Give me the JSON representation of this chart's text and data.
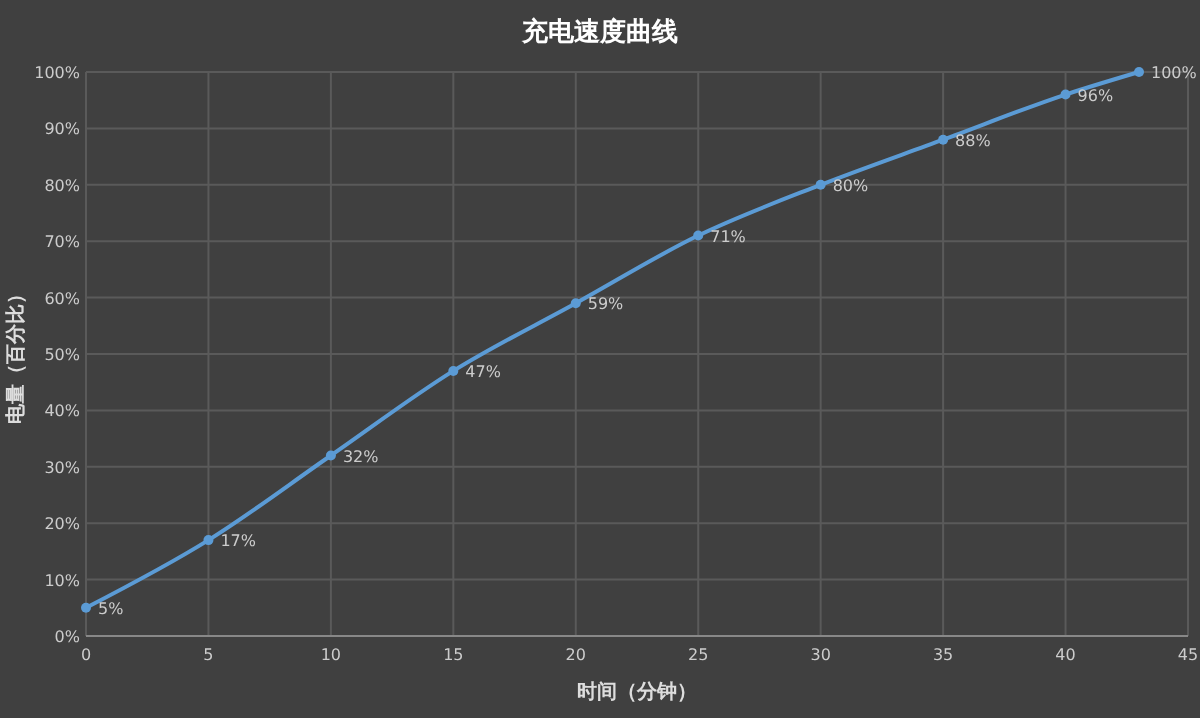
{
  "chart_data": {
    "type": "line",
    "title": "充电速度曲线",
    "xlabel": "时间（分钟）",
    "ylabel": "电量（百分比）",
    "x": [
      0,
      5,
      10,
      15,
      20,
      25,
      30,
      35,
      40,
      43
    ],
    "series": [
      {
        "color": "#5b9bd5",
        "values": [
          5,
          17,
          32,
          47,
          59,
          71,
          80,
          88,
          96,
          100
        ],
        "value_labels": [
          "5%",
          "17%",
          "32%",
          "47%",
          "59%",
          "71%",
          "80%",
          "88%",
          "96%",
          "100%"
        ]
      }
    ],
    "xlim": [
      0,
      45
    ],
    "xticks": [
      0,
      5,
      10,
      15,
      20,
      25,
      30,
      35,
      40,
      45
    ],
    "ylim": [
      0,
      100
    ],
    "yticks": [
      {
        "value": 0,
        "label": "0%"
      },
      {
        "value": 10,
        "label": "10%"
      },
      {
        "value": 20,
        "label": "20%"
      },
      {
        "value": 30,
        "label": "30%"
      },
      {
        "value": 40,
        "label": "40%"
      },
      {
        "value": 50,
        "label": "50%"
      },
      {
        "value": 60,
        "label": "60%"
      },
      {
        "value": 70,
        "label": "70%"
      },
      {
        "value": 80,
        "label": "80%"
      },
      {
        "value": 90,
        "label": "90%"
      },
      {
        "value": 100,
        "label": "100%"
      }
    ],
    "grid": true,
    "marker": "circle",
    "line_style": "solid"
  }
}
